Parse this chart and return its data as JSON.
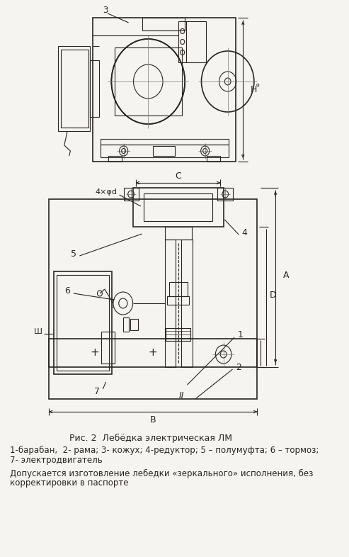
{
  "bg_color": "#f5f4f0",
  "line_color": "#2a2520",
  "title": "Рис. 2  Лебёдка электрическая ЛМ",
  "caption1": "1-барабан,  2- рама; 3- кожух; 4-редуктор; 5 – полумуфта; 6 – тормоз;",
  "caption2": "7- электродвигатель",
  "caption3": "Допускается изготовление лебедки «зеркального» исполнения, без",
  "caption4": "корректировки в паспорте",
  "label_3": "3",
  "label_H": "H",
  "label_4xphi_d": "4×φd",
  "label_C": "C",
  "label_5": "5",
  "label_6": "6",
  "label_4": "4",
  "label_1": "1",
  "label_2": "2",
  "label_III": "Ш",
  "label_D": "D",
  "label_A": "A",
  "label_7": "7",
  "label_B": "B",
  "label_II": "II"
}
